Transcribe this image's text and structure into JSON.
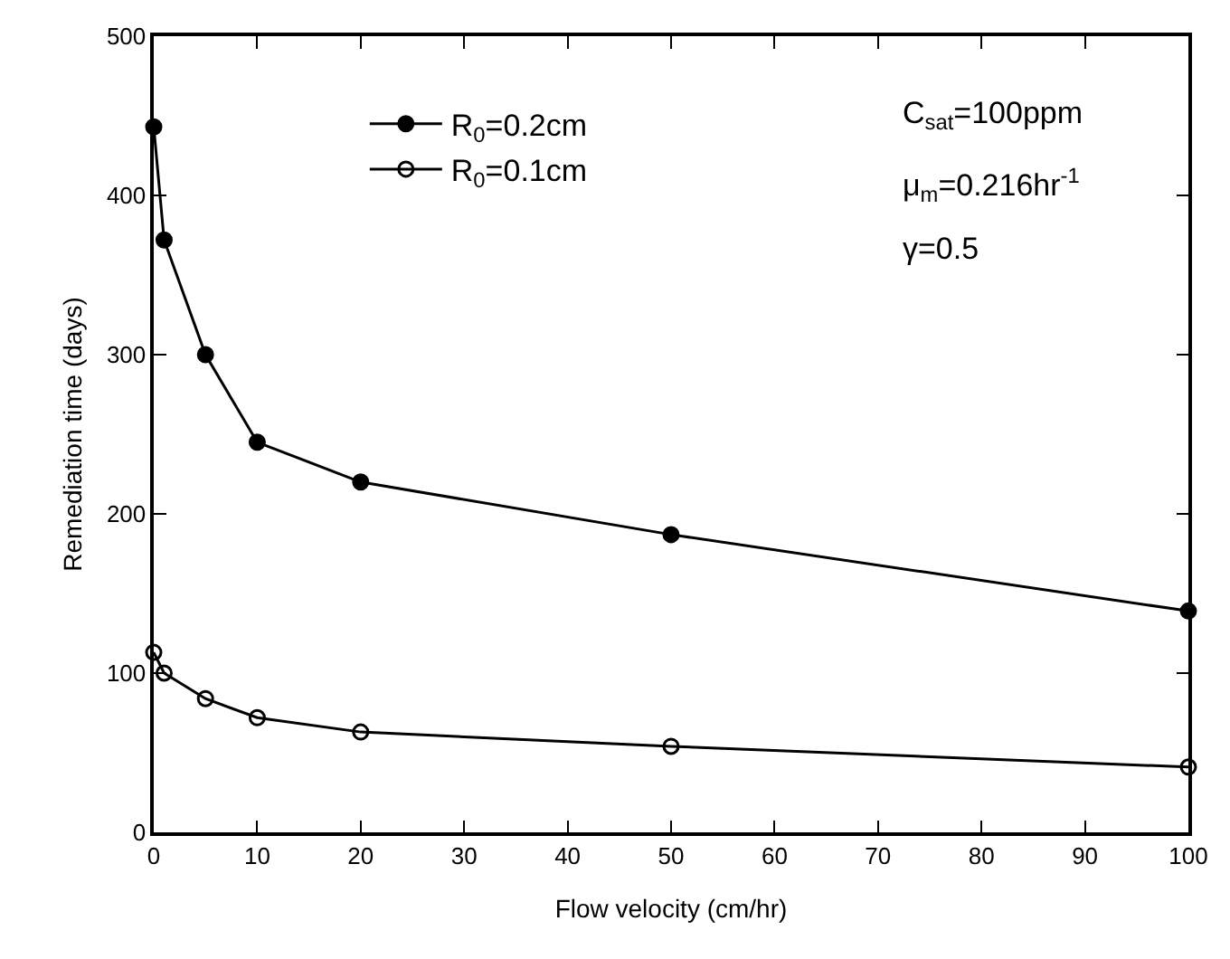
{
  "chart_data": {
    "type": "line",
    "xlabel": "Flow velocity (cm/hr)",
    "ylabel": "Remediation time (days)",
    "x": [
      0,
      1,
      5,
      10,
      20,
      50,
      100
    ],
    "series": [
      {
        "name": "R$_{0}$=0.2cm",
        "color": "#000000",
        "marker": "circle",
        "values": [
          443,
          372,
          300,
          245,
          220,
          187,
          139
        ]
      },
      {
        "name": "R$_{0}$=0.1cm",
        "color": "#000000",
        "marker": "circle",
        "values": [
          113,
          100,
          84,
          72,
          63,
          54,
          41
        ]
      }
    ],
    "xlim": [
      0,
      100
    ],
    "xticks": [
      0,
      10,
      20,
      30,
      40,
      50,
      60,
      70,
      80,
      90,
      100
    ],
    "ylim": [
      0,
      500
    ],
    "yticks": [
      0,
      100,
      200,
      300,
      400,
      500
    ],
    "legend": "top",
    "line_style": "solid",
    "annotations": [
      "C$_{sat}$=100ppm",
      "μ$_{m}$=0.216hr$^{-1}$",
      "γ=0.5"
    ]
  }
}
